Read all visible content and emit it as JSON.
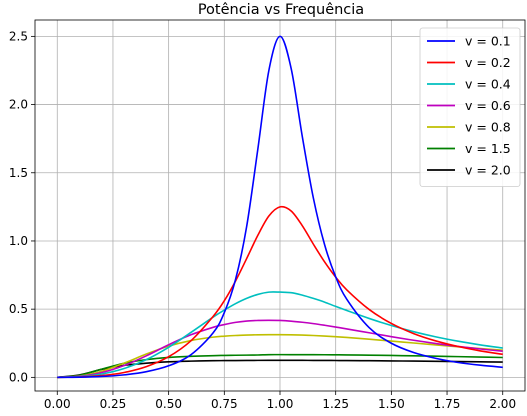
{
  "chart_data": {
    "type": "line",
    "title": "Potência vs Frequência",
    "xlabel": "",
    "ylabel": "",
    "xlim": [
      -0.1,
      2.1
    ],
    "ylim": [
      -0.1,
      2.62
    ],
    "xticks": [
      "0.00",
      "0.25",
      "0.50",
      "0.75",
      "1.00",
      "1.25",
      "1.50",
      "1.75",
      "2.00"
    ],
    "yticks": [
      "0.0",
      "0.5",
      "1.0",
      "1.5",
      "2.0",
      "2.5"
    ],
    "grid": true,
    "legend_position": "top-right",
    "x": [
      0,
      0.1,
      0.2,
      0.3,
      0.4,
      0.5,
      0.6,
      0.7,
      0.75,
      0.8,
      0.85,
      0.9,
      0.95,
      1.0,
      1.05,
      1.1,
      1.15,
      1.2,
      1.25,
      1.3,
      1.4,
      1.5,
      1.6,
      1.7,
      1.8,
      1.9,
      2.0
    ],
    "series": [
      {
        "name": "v = 0.1",
        "color": "#0000ff",
        "values": [
          0,
          0.0013,
          0.0065,
          0.0183,
          0.0415,
          0.0847,
          0.1658,
          0.327,
          0.475,
          0.715,
          1.103,
          1.668,
          2.25,
          2.5,
          2.265,
          1.767,
          1.313,
          0.974,
          0.737,
          0.572,
          0.365,
          0.25,
          0.182,
          0.139,
          0.109,
          0.089,
          0.074
        ]
      },
      {
        "name": "v = 0.2",
        "color": "#ff0000",
        "values": [
          0,
          0.0026,
          0.0129,
          0.0357,
          0.0786,
          0.1512,
          0.268,
          0.447,
          0.562,
          0.705,
          0.87,
          1.04,
          1.183,
          1.25,
          1.22,
          1.112,
          0.976,
          0.847,
          0.735,
          0.641,
          0.498,
          0.395,
          0.321,
          0.267,
          0.226,
          0.194,
          0.169
        ]
      },
      {
        "name": "v = 0.4",
        "color": "#00bfbf",
        "values": [
          0,
          0.0051,
          0.0248,
          0.065,
          0.1302,
          0.2206,
          0.3293,
          0.442,
          0.493,
          0.54,
          0.579,
          0.608,
          0.625,
          0.625,
          0.621,
          0.603,
          0.579,
          0.552,
          0.52,
          0.49,
          0.432,
          0.38,
          0.335,
          0.297,
          0.265,
          0.238,
          0.215
        ]
      },
      {
        "name": "v = 0.6",
        "color": "#bf00bf",
        "values": [
          0,
          0.0075,
          0.0355,
          0.087,
          0.158,
          0.239,
          0.312,
          0.367,
          0.387,
          0.403,
          0.413,
          0.417,
          0.418,
          0.417,
          0.412,
          0.404,
          0.394,
          0.382,
          0.369,
          0.355,
          0.327,
          0.298,
          0.272,
          0.248,
          0.227,
          0.208,
          0.192
        ]
      },
      {
        "name": "v = 0.8",
        "color": "#bfbf00",
        "values": [
          0,
          0.0097,
          0.0451,
          0.104,
          0.171,
          0.229,
          0.27,
          0.295,
          0.302,
          0.307,
          0.31,
          0.312,
          0.313,
          0.313,
          0.312,
          0.31,
          0.307,
          0.303,
          0.298,
          0.293,
          0.28,
          0.266,
          0.252,
          0.238,
          0.224,
          0.211,
          0.199
        ]
      },
      {
        "name": "v = 1.5",
        "color": "#008000",
        "values": [
          0,
          0.0156,
          0.0602,
          0.103,
          0.13,
          0.146,
          0.154,
          0.159,
          0.161,
          0.162,
          0.163,
          0.164,
          0.1665,
          0.1667,
          0.1666,
          0.1664,
          0.1661,
          0.1658,
          0.1652,
          0.1645,
          0.1628,
          0.1605,
          0.1579,
          0.155,
          0.152,
          0.1488,
          0.1455
        ]
      },
      {
        "name": "v = 2.0",
        "color": "#000000",
        "values": [
          0,
          0.018,
          0.059,
          0.088,
          0.104,
          0.114,
          0.119,
          0.122,
          0.1228,
          0.1235,
          0.124,
          0.1245,
          0.1249,
          0.125,
          0.1249,
          0.1247,
          0.1244,
          0.124,
          0.1236,
          0.1231,
          0.122,
          0.1207,
          0.1192,
          0.1176,
          0.1159,
          0.1141,
          0.1122
        ]
      }
    ]
  }
}
